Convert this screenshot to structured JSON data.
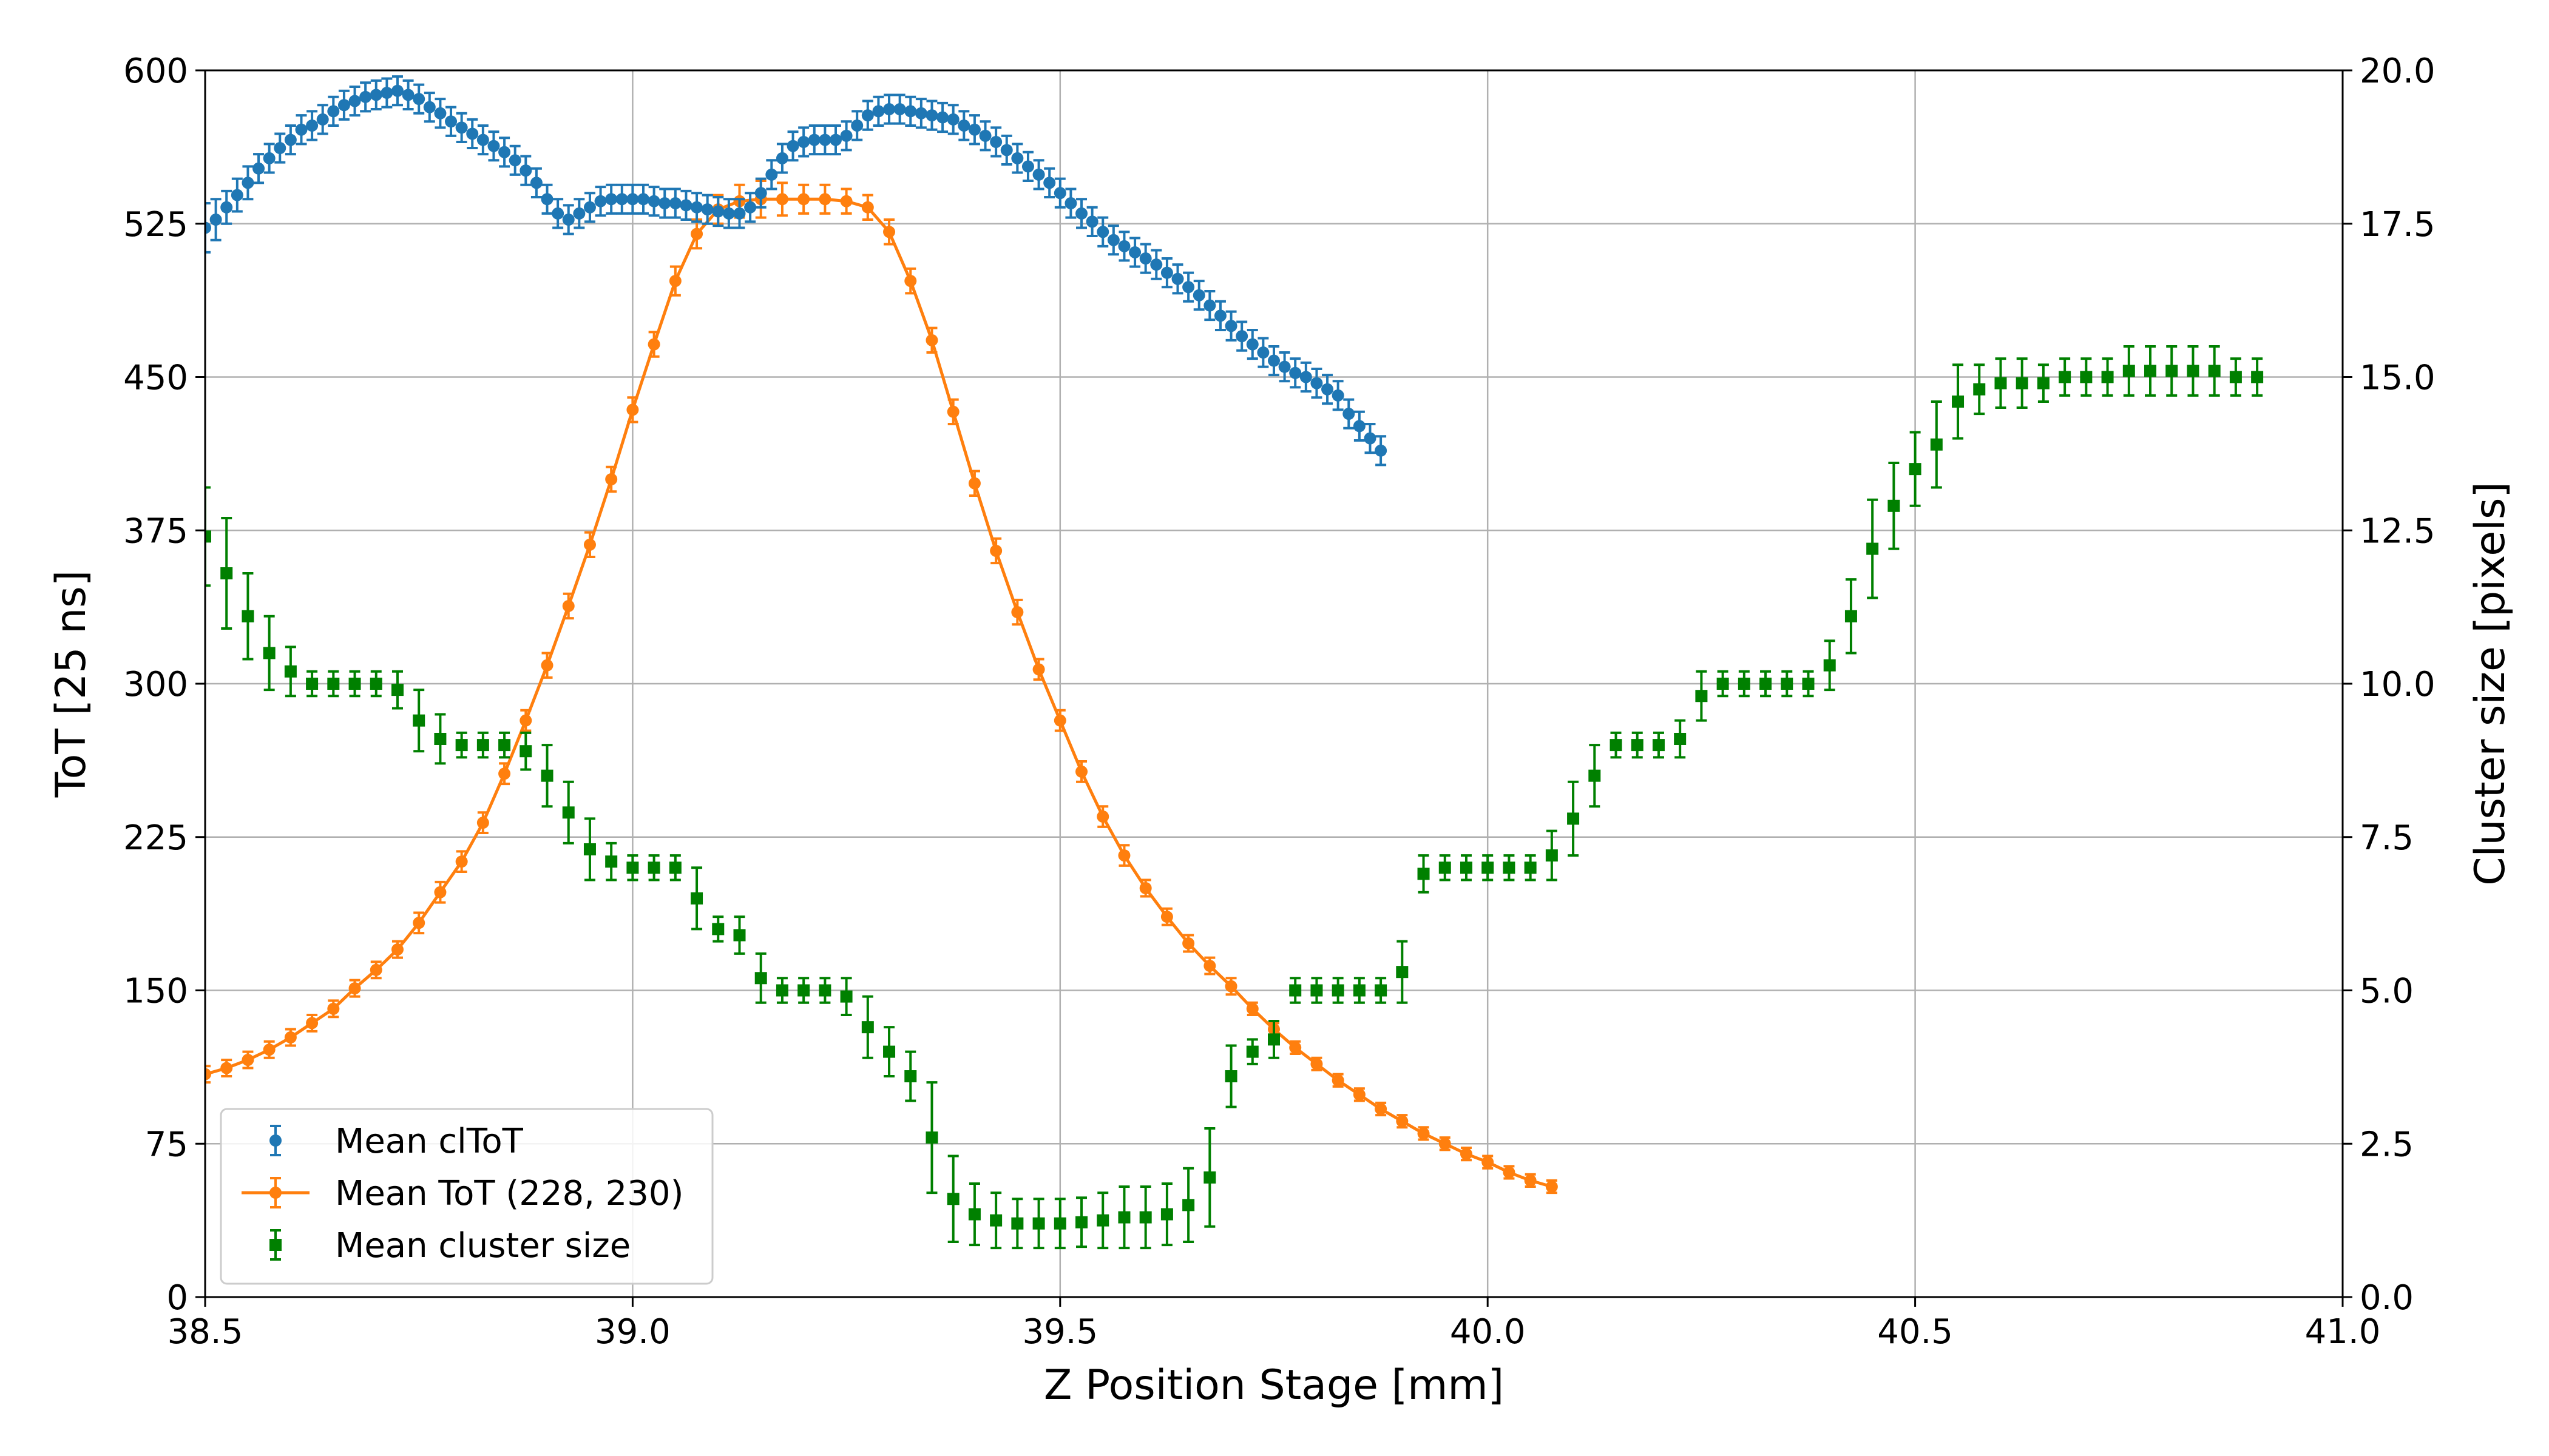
{
  "chart_data": {
    "type": "scatter",
    "title": "",
    "xlabel": "Z Position Stage [mm]",
    "ylabel": "ToT [25 ns]",
    "y2label": "Cluster size [pixels]",
    "xlim": [
      38.5,
      41.0
    ],
    "ylim": [
      0,
      600
    ],
    "y2lim": [
      0,
      20
    ],
    "grid": true,
    "legend_position": "bottom-left",
    "x_ticks": [
      "38.5",
      "39.0",
      "39.5",
      "40.0",
      "40.5",
      "41.0"
    ],
    "y_ticks": [
      "0",
      "75",
      "150",
      "225",
      "300",
      "375",
      "450",
      "525",
      "600"
    ],
    "y2_ticks": [
      "0.0",
      "2.5",
      "5.0",
      "7.5",
      "10.0",
      "12.5",
      "15.0",
      "17.5",
      "20.0"
    ],
    "series": [
      {
        "name": "Mean clToT",
        "axis": "left",
        "color": "#1f77b4",
        "marker": "circle",
        "line": false,
        "x_start": 38.5,
        "x_step": 0.0125,
        "values": [
          523,
          527,
          533,
          539,
          545,
          552,
          557,
          562,
          566,
          571,
          573,
          576,
          580,
          583,
          585,
          587,
          588,
          589,
          590,
          588,
          586,
          582,
          579,
          575,
          572,
          569,
          566,
          563,
          560,
          556,
          551,
          545,
          537,
          530,
          527,
          530,
          533,
          536,
          537,
          537,
          537,
          537,
          536,
          535,
          535,
          534,
          533,
          532,
          531,
          530,
          530,
          533,
          540,
          549,
          557,
          563,
          565,
          566,
          566,
          566,
          568,
          573,
          578,
          580,
          581,
          581,
          580,
          579,
          578,
          577,
          576,
          573,
          571,
          568,
          565,
          561,
          557,
          553,
          549,
          545,
          540,
          535,
          530,
          526,
          521,
          517,
          514,
          511,
          508,
          505,
          501,
          498,
          494,
          490,
          485,
          480,
          475,
          470,
          466,
          462,
          458,
          455,
          452,
          450,
          447,
          444,
          441,
          432,
          426,
          420,
          414
        ],
        "err": [
          12,
          10,
          8,
          8,
          8,
          7,
          7,
          7,
          7,
          7,
          7,
          7,
          7,
          7,
          7,
          7,
          7,
          7,
          7,
          7,
          7,
          7,
          7,
          7,
          7,
          7,
          7,
          7,
          7,
          7,
          7,
          7,
          7,
          7,
          7,
          7,
          7,
          7,
          7,
          7,
          7,
          7,
          7,
          7,
          7,
          7,
          7,
          7,
          7,
          7,
          7,
          7,
          7,
          7,
          7,
          7,
          7,
          7,
          7,
          7,
          7,
          7,
          7,
          7,
          7,
          7,
          7,
          7,
          7,
          7,
          7,
          7,
          7,
          7,
          7,
          7,
          7,
          7,
          7,
          7,
          7,
          7,
          7,
          7,
          7,
          7,
          7,
          7,
          7,
          7,
          7,
          7,
          7,
          7,
          7,
          7,
          7,
          7,
          7,
          7,
          7,
          7,
          7,
          7,
          7,
          7,
          7,
          7,
          7,
          7,
          7
        ]
      },
      {
        "name": "Mean ToT (228, 230)",
        "axis": "left",
        "color": "#ff7f0e",
        "marker": "circle",
        "line": true,
        "x_start": 38.5,
        "x_step": 0.025,
        "values": [
          109,
          112,
          116,
          121,
          127,
          134,
          141,
          151,
          160,
          170,
          183,
          198,
          213,
          232,
          256,
          282,
          309,
          338,
          368,
          400,
          434,
          466,
          497,
          520,
          532,
          536,
          537,
          537,
          537,
          537,
          536,
          533,
          521,
          497,
          468,
          433,
          398,
          365,
          335,
          307,
          282,
          257,
          235,
          216,
          200,
          186,
          173,
          162,
          152,
          141,
          131,
          122,
          114,
          106,
          99,
          92,
          86,
          80,
          75,
          70,
          66,
          61,
          57,
          54
        ],
        "err": [
          4,
          4,
          4,
          4,
          4,
          4,
          4,
          4,
          4,
          4,
          5,
          5,
          5,
          5,
          5,
          5,
          6,
          6,
          6,
          6,
          6,
          6,
          7,
          7,
          7,
          8,
          9,
          8,
          7,
          7,
          6,
          6,
          6,
          6,
          6,
          6,
          6,
          6,
          6,
          5,
          5,
          5,
          5,
          5,
          4,
          4,
          4,
          4,
          4,
          3,
          3,
          3,
          3,
          3,
          3,
          3,
          3,
          3,
          3,
          3,
          3,
          3,
          3,
          3
        ]
      },
      {
        "name": "Mean cluster size",
        "axis": "right",
        "color": "#008000",
        "marker": "square",
        "line": false,
        "x_start": 38.5,
        "x_step": 0.025,
        "values": [
          12.4,
          11.8,
          11.1,
          10.5,
          10.2,
          10.0,
          10.0,
          10.0,
          10.0,
          9.9,
          9.4,
          9.1,
          9.0,
          9.0,
          9.0,
          8.9,
          8.5,
          7.9,
          7.3,
          7.1,
          7.0,
          7.0,
          7.0,
          6.5,
          6.0,
          5.9,
          5.2,
          5.0,
          5.0,
          5.0,
          4.9,
          4.4,
          4.0,
          3.6,
          2.6,
          1.6,
          1.35,
          1.25,
          1.2,
          1.2,
          1.2,
          1.22,
          1.25,
          1.3,
          1.3,
          1.35,
          1.5,
          1.95,
          3.6,
          4.0,
          4.2,
          5.0,
          5.0,
          5.0,
          5.0,
          5.0,
          5.3,
          6.9,
          7.0,
          7.0,
          7.0,
          7.0,
          7.0,
          7.2,
          7.8,
          8.5,
          9.0,
          9.0,
          9.0,
          9.1,
          9.8,
          10.0,
          10.0,
          10.0,
          10.0,
          10.0,
          10.3,
          11.1,
          12.2,
          12.9,
          13.5,
          13.9,
          14.6,
          14.8,
          14.9,
          14.9,
          14.9,
          15.0,
          15.0,
          15.0,
          15.1,
          15.1,
          15.1,
          15.1,
          15.1,
          15.0,
          15.0
        ],
        "err": [
          0.8,
          0.9,
          0.7,
          0.6,
          0.4,
          0.2,
          0.2,
          0.2,
          0.2,
          0.3,
          0.5,
          0.4,
          0.2,
          0.2,
          0.2,
          0.3,
          0.5,
          0.5,
          0.5,
          0.3,
          0.2,
          0.2,
          0.2,
          0.5,
          0.2,
          0.3,
          0.4,
          0.2,
          0.2,
          0.2,
          0.3,
          0.5,
          0.4,
          0.4,
          0.9,
          0.7,
          0.5,
          0.45,
          0.4,
          0.4,
          0.4,
          0.4,
          0.45,
          0.5,
          0.5,
          0.5,
          0.6,
          0.8,
          0.5,
          0.2,
          0.3,
          0.2,
          0.2,
          0.2,
          0.2,
          0.2,
          0.5,
          0.3,
          0.2,
          0.2,
          0.2,
          0.2,
          0.2,
          0.4,
          0.6,
          0.5,
          0.2,
          0.2,
          0.2,
          0.3,
          0.4,
          0.2,
          0.2,
          0.2,
          0.2,
          0.2,
          0.4,
          0.6,
          0.8,
          0.7,
          0.6,
          0.7,
          0.6,
          0.4,
          0.4,
          0.4,
          0.3,
          0.3,
          0.3,
          0.3,
          0.4,
          0.4,
          0.4,
          0.4,
          0.4,
          0.3,
          0.3
        ]
      }
    ]
  }
}
